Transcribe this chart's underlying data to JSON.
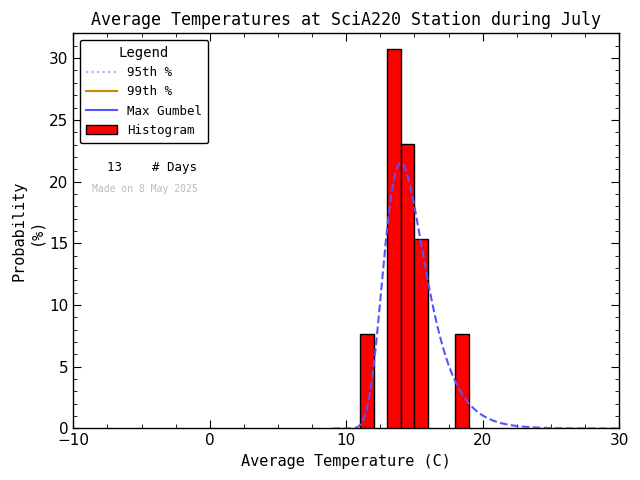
{
  "title": "Average Temperatures at SciA220 Station during July",
  "xlabel": "Average Temperature (C)",
  "ylabel1": "Probability",
  "ylabel2": "(%)",
  "xlim": [
    -10,
    30
  ],
  "ylim": [
    0,
    32
  ],
  "xticks": [
    -10,
    0,
    10,
    20,
    30
  ],
  "yticks": [
    0,
    5,
    10,
    15,
    20,
    25,
    30
  ],
  "bar_lefts": [
    11,
    13,
    14,
    15,
    18
  ],
  "bar_heights": [
    7.69,
    30.77,
    23.08,
    15.38,
    7.69
  ],
  "bar_width": 1,
  "bar_color": "#ff0000",
  "bar_edgecolor": "#000000",
  "gumbel_mu": 14.0,
  "gumbel_beta": 1.5,
  "gumbel_peak": 21.5,
  "gumbel_xstart": 9.0,
  "gumbel_xend": 30.0,
  "gumbel_color": "#5555ff",
  "gumbel_linestyle": "--",
  "gumbel_linewidth": 1.5,
  "line_95_color": "#aaaaff",
  "line_99_color": "#cc8800",
  "n_days": 13,
  "legend_title": "Legend",
  "legend_95_label": "95th %",
  "legend_99_label": "99th %",
  "legend_gumbel_label": "Max Gumbel",
  "legend_hist_label": "Histogram",
  "legend_days_label": "# Days",
  "annotation_text": "Made on 8 May 2025",
  "annotation_color": "#bbbbbb",
  "background_color": "#ffffff",
  "title_fontsize": 12,
  "label_fontsize": 11,
  "tick_fontsize": 11
}
